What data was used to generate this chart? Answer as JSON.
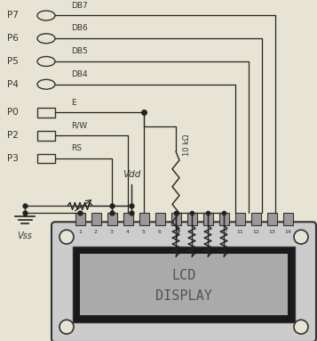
{
  "bg_color": "#e8e4d4",
  "pins_left": [
    "P7",
    "P6",
    "P5",
    "P4",
    "P0",
    "P2",
    "P3"
  ],
  "pin_labels": [
    "DB7",
    "DB6",
    "DB5",
    "DB4",
    "E",
    "R/W",
    "RS"
  ],
  "lcd_bg": "#cccccc",
  "lcd_screen_bg": "#aaaaaa",
  "lcd_dark": "#1a1a1a",
  "lcd_text1": "LCD",
  "lcd_text2": "DISPLAY",
  "resistor_label": "10 kΩ",
  "vdd_label": "Vdd",
  "vss_label": "Vss",
  "wire_color": "#222222",
  "dark": "#333333",
  "gray": "#999999"
}
